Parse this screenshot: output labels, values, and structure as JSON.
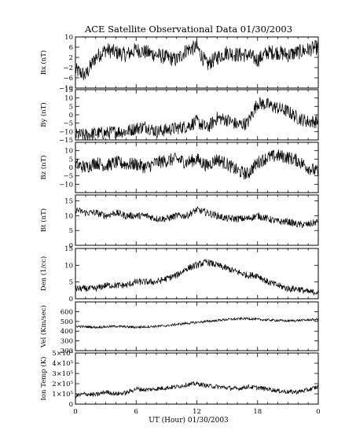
{
  "title": "ACE Satellite Observational Data   01/30/2003",
  "xlabel": "UT (Hour)   01/30/2003",
  "x_ticks": [
    "0",
    "6",
    "12",
    "18",
    "0"
  ],
  "chart_data": [
    {
      "type": "line",
      "id": "bx",
      "ylabel": "Bx (nT)",
      "ylim": [
        -10,
        10
      ],
      "yticks": [
        -10,
        -6,
        -2,
        2,
        6,
        10
      ],
      "ytick_labels": [
        "−10",
        "−6",
        "−2",
        "2",
        "6",
        "10"
      ],
      "x_hours": [
        0,
        1,
        2,
        3,
        4,
        5,
        6,
        7,
        8,
        9,
        10,
        11,
        12,
        13,
        14,
        15,
        16,
        17,
        18,
        19,
        20,
        21,
        22,
        23,
        24
      ],
      "values": [
        -3,
        -5,
        2,
        5,
        4,
        3,
        5,
        4,
        3,
        2,
        1,
        5,
        6,
        -1,
        2,
        4,
        3,
        3,
        1,
        4,
        4,
        3,
        4,
        5,
        6
      ],
      "noise": 3
    },
    {
      "type": "line",
      "id": "by",
      "ylabel": "By (nT)",
      "ylim": [
        -15,
        15
      ],
      "yticks": [
        -15,
        -10,
        -5,
        0,
        5,
        10,
        15
      ],
      "ytick_labels": [
        "−15",
        "−10",
        "−5",
        "0",
        "5",
        "10",
        "15"
      ],
      "x_hours": [
        0,
        1,
        2,
        3,
        4,
        5,
        6,
        7,
        8,
        9,
        10,
        11,
        12,
        13,
        14,
        15,
        16,
        17,
        18,
        19,
        20,
        21,
        22,
        23,
        24
      ],
      "values": [
        -12,
        -12,
        -11,
        -11,
        -10,
        -10,
        -8,
        -7,
        -10,
        -9,
        -8,
        -7,
        -4,
        -8,
        -2,
        -3,
        -6,
        -5,
        7,
        6,
        4,
        2,
        -2,
        -4,
        -4
      ],
      "noise": 4
    },
    {
      "type": "line",
      "id": "bz",
      "ylabel": "Bz (nT)",
      "ylim": [
        -15,
        15
      ],
      "yticks": [
        -10,
        -5,
        0,
        5,
        10
      ],
      "ytick_labels": [
        "−10",
        "−5",
        "0",
        "5",
        "10"
      ],
      "x_hours": [
        0,
        1,
        2,
        3,
        4,
        5,
        6,
        7,
        8,
        9,
        10,
        11,
        12,
        13,
        14,
        15,
        16,
        17,
        18,
        19,
        20,
        21,
        22,
        23,
        24
      ],
      "values": [
        2,
        0,
        3,
        1,
        3,
        2,
        2,
        0,
        3,
        4,
        5,
        3,
        5,
        1,
        5,
        2,
        -2,
        -4,
        3,
        6,
        7,
        6,
        4,
        0,
        -3
      ],
      "noise": 4
    },
    {
      "type": "line",
      "id": "bt",
      "ylabel": "Bt (nT)",
      "ylim": [
        0,
        17
      ],
      "yticks": [
        0,
        5,
        10,
        15
      ],
      "ytick_labels": [
        "0",
        "5",
        "10",
        "15"
      ],
      "x_hours": [
        0,
        1,
        2,
        3,
        4,
        5,
        6,
        7,
        8,
        9,
        10,
        11,
        12,
        13,
        14,
        15,
        16,
        17,
        18,
        19,
        20,
        21,
        22,
        23,
        24
      ],
      "values": [
        12,
        11,
        11,
        10,
        11,
        10,
        10,
        10,
        9,
        9,
        10,
        10,
        12,
        11,
        10,
        9,
        9,
        9,
        10,
        9,
        8,
        8,
        7,
        7,
        8
      ],
      "noise": 1.2
    },
    {
      "type": "line",
      "id": "den",
      "ylabel": "Den (1/cc)",
      "ylim": [
        0,
        15
      ],
      "yticks": [
        0,
        5,
        10,
        15
      ],
      "ytick_labels": [
        "0",
        "5",
        "10",
        "15"
      ],
      "x_hours": [
        0,
        1,
        2,
        3,
        4,
        5,
        6,
        7,
        8,
        9,
        10,
        11,
        12,
        13,
        14,
        15,
        16,
        17,
        18,
        19,
        20,
        21,
        22,
        23,
        24
      ],
      "values": [
        3,
        3,
        3,
        4,
        4,
        4,
        5,
        5,
        5,
        6,
        7,
        9,
        10,
        11,
        10,
        9,
        8,
        7,
        7,
        5,
        4,
        3,
        3,
        2,
        2
      ],
      "noise": 1
    },
    {
      "type": "line",
      "id": "vel",
      "ylabel": "Vel (Km/sec)",
      "ylim": [
        200,
        700
      ],
      "yticks": [
        200,
        300,
        400,
        500,
        600
      ],
      "ytick_labels": [
        "200",
        "300",
        "400",
        "500",
        "600"
      ],
      "x_hours": [
        0,
        1,
        2,
        3,
        4,
        5,
        6,
        7,
        8,
        9,
        10,
        11,
        12,
        13,
        14,
        15,
        16,
        17,
        18,
        19,
        20,
        21,
        22,
        23,
        24
      ],
      "values": [
        450,
        445,
        440,
        445,
        450,
        445,
        440,
        445,
        450,
        455,
        470,
        480,
        490,
        500,
        510,
        520,
        525,
        530,
        520,
        515,
        510,
        505,
        510,
        515,
        520
      ],
      "noise": 12
    },
    {
      "type": "line",
      "id": "temp",
      "ylabel": "Ion Temp (K)",
      "ylim": [
        0,
        500000
      ],
      "yticks": [
        0,
        100000,
        200000,
        300000,
        400000,
        500000
      ],
      "ytick_labels": [
        "0",
        "1×10⁵",
        "2×10⁵",
        "3×10⁵",
        "4×10⁵",
        "5×10⁵"
      ],
      "x_hours": [
        0,
        1,
        2,
        3,
        4,
        5,
        6,
        7,
        8,
        9,
        10,
        11,
        12,
        13,
        14,
        15,
        16,
        17,
        18,
        19,
        20,
        21,
        22,
        23,
        24
      ],
      "values": [
        80000,
        100000,
        90000,
        120000,
        100000,
        110000,
        150000,
        140000,
        150000,
        160000,
        170000,
        190000,
        200000,
        180000,
        170000,
        160000,
        150000,
        170000,
        160000,
        150000,
        130000,
        120000,
        120000,
        140000,
        170000
      ],
      "noise": 22000
    }
  ]
}
